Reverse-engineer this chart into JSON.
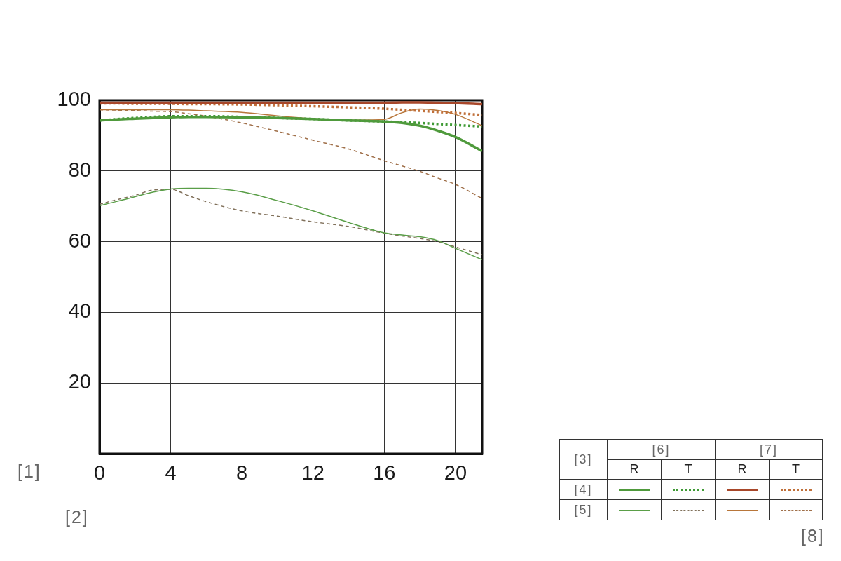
{
  "chart_data": {
    "type": "line",
    "x": [
      0,
      1,
      2,
      3,
      4,
      5,
      6,
      8,
      10,
      12,
      14,
      16,
      17,
      18,
      19,
      20,
      21.5
    ],
    "series": [
      {
        "color": "#4f9a3c",
        "line_style": "solid",
        "values": [
          94.3,
          94.6,
          94.8,
          95.0,
          95.2,
          95.3,
          95.3,
          95.2,
          95.0,
          94.7,
          94.3,
          94.0,
          93.6,
          92.8,
          91.4,
          89.6,
          85.6
        ]
      },
      {
        "color": "#3f9a35",
        "line_style": "dotted",
        "values": [
          94.3,
          94.7,
          95.0,
          95.3,
          95.5,
          95.5,
          95.5,
          95.3,
          95.0,
          94.7,
          94.3,
          94.0,
          93.8,
          93.6,
          93.3,
          93.0,
          92.6
        ]
      },
      {
        "color": "#a8472a",
        "line_style": "solid",
        "values": [
          99.3,
          99.3,
          99.3,
          99.3,
          99.3,
          99.3,
          99.3,
          99.3,
          99.3,
          99.3,
          99.3,
          99.3,
          99.4,
          99.4,
          99.3,
          99.2,
          98.9
        ]
      },
      {
        "color": "#c0703a",
        "line_style": "dotted",
        "values": [
          99.1,
          99.1,
          99.0,
          99.0,
          99.0,
          98.9,
          98.9,
          98.8,
          98.6,
          98.3,
          98.0,
          97.6,
          97.3,
          97.0,
          96.7,
          96.4,
          95.8
        ]
      },
      {
        "color": "#5a9e48",
        "line_style": "solid",
        "values": [
          70.2,
          71.4,
          72.7,
          74.0,
          74.9,
          75.1,
          75.1,
          74.1,
          71.6,
          68.7,
          65.4,
          62.5,
          61.9,
          61.4,
          60.3,
          58.1,
          54.9
        ]
      },
      {
        "color": "#80705a",
        "line_style": "dashed",
        "values": [
          70.6,
          71.9,
          73.1,
          74.6,
          74.8,
          73.0,
          71.3,
          68.7,
          67.2,
          65.6,
          64.3,
          62.4,
          61.6,
          60.9,
          60.0,
          58.5,
          56.3
        ]
      },
      {
        "color": "#b8763a",
        "line_style": "solid",
        "values": [
          97.3,
          97.3,
          97.3,
          97.3,
          97.3,
          97.2,
          97.0,
          96.6,
          95.6,
          94.8,
          94.4,
          94.6,
          96.5,
          97.5,
          97.1,
          96.0,
          92.8
        ]
      },
      {
        "color": "#a0704a",
        "line_style": "dashed",
        "values": [
          97.3,
          97.2,
          97.1,
          96.9,
          96.8,
          96.2,
          95.5,
          93.6,
          91.2,
          88.7,
          86.2,
          82.9,
          81.4,
          79.9,
          78.0,
          76.2,
          72.2
        ]
      }
    ],
    "xlim": [
      0,
      21.5
    ],
    "xticks": [
      0,
      4,
      8,
      12,
      16,
      20
    ],
    "ylim": [
      0,
      100
    ],
    "yticks": [
      20,
      40,
      60,
      80,
      100
    ],
    "grid": true,
    "legend_title": "[3]",
    "annotations": [
      "[1]",
      "[2]",
      "[8]",
      "[6]",
      "[7]",
      "R",
      "T",
      "R",
      "T",
      "[4]",
      "[5]"
    ]
  }
}
